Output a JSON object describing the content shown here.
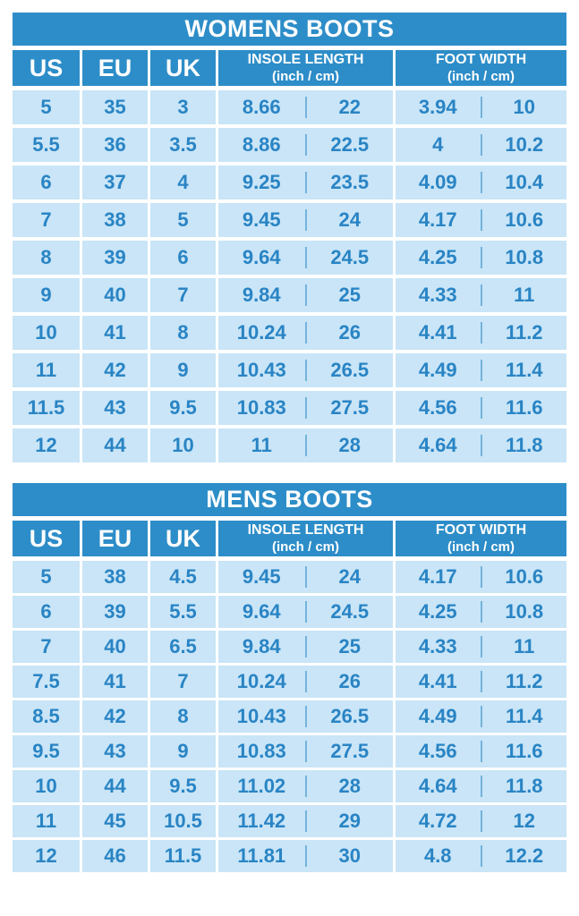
{
  "colors": {
    "header_blue": "#2D8DC8",
    "row_bg": "#C9E5F7",
    "value_text": "#2984C4",
    "divider": "#74B3DC",
    "title_text": "#FFFFFF",
    "page_bg": "#FFFFFF"
  },
  "chart_data": [
    {
      "type": "table",
      "title": "WOMENS BOOTS",
      "columns": [
        {
          "label": "US"
        },
        {
          "label": "EU"
        },
        {
          "label": "UK"
        },
        {
          "label": "INSOLE LENGTH",
          "sublabel": "(inch / cm)"
        },
        {
          "label": "FOOT WIDTH",
          "sublabel": "(inch / cm)"
        }
      ],
      "rows": [
        {
          "us": "5",
          "eu": "35",
          "uk": "3",
          "insole_inch": "8.66",
          "insole_cm": "22",
          "foot_width_inch": "3.94",
          "foot_width_cm": "10"
        },
        {
          "us": "5.5",
          "eu": "36",
          "uk": "3.5",
          "insole_inch": "8.86",
          "insole_cm": "22.5",
          "foot_width_inch": "4",
          "foot_width_cm": "10.2"
        },
        {
          "us": "6",
          "eu": "37",
          "uk": "4",
          "insole_inch": "9.25",
          "insole_cm": "23.5",
          "foot_width_inch": "4.09",
          "foot_width_cm": "10.4"
        },
        {
          "us": "7",
          "eu": "38",
          "uk": "5",
          "insole_inch": "9.45",
          "insole_cm": "24",
          "foot_width_inch": "4.17",
          "foot_width_cm": "10.6"
        },
        {
          "us": "8",
          "eu": "39",
          "uk": "6",
          "insole_inch": "9.64",
          "insole_cm": "24.5",
          "foot_width_inch": "4.25",
          "foot_width_cm": "10.8"
        },
        {
          "us": "9",
          "eu": "40",
          "uk": "7",
          "insole_inch": "9.84",
          "insole_cm": "25",
          "foot_width_inch": "4.33",
          "foot_width_cm": "11"
        },
        {
          "us": "10",
          "eu": "41",
          "uk": "8",
          "insole_inch": "10.24",
          "insole_cm": "26",
          "foot_width_inch": "4.41",
          "foot_width_cm": "11.2"
        },
        {
          "us": "11",
          "eu": "42",
          "uk": "9",
          "insole_inch": "10.43",
          "insole_cm": "26.5",
          "foot_width_inch": "4.49",
          "foot_width_cm": "11.4"
        },
        {
          "us": "11.5",
          "eu": "43",
          "uk": "9.5",
          "insole_inch": "10.83",
          "insole_cm": "27.5",
          "foot_width_inch": "4.56",
          "foot_width_cm": "11.6"
        },
        {
          "us": "12",
          "eu": "44",
          "uk": "10",
          "insole_inch": "11",
          "insole_cm": "28",
          "foot_width_inch": "4.64",
          "foot_width_cm": "11.8"
        }
      ]
    },
    {
      "type": "table",
      "title": "MENS BOOTS",
      "columns": [
        {
          "label": "US"
        },
        {
          "label": "EU"
        },
        {
          "label": "UK"
        },
        {
          "label": "INSOLE LENGTH",
          "sublabel": "(inch / cm)"
        },
        {
          "label": "FOOT WIDTH",
          "sublabel": "(inch / cm)"
        }
      ],
      "rows": [
        {
          "us": "5",
          "eu": "38",
          "uk": "4.5",
          "insole_inch": "9.45",
          "insole_cm": "24",
          "foot_width_inch": "4.17",
          "foot_width_cm": "10.6"
        },
        {
          "us": "6",
          "eu": "39",
          "uk": "5.5",
          "insole_inch": "9.64",
          "insole_cm": "24.5",
          "foot_width_inch": "4.25",
          "foot_width_cm": "10.8"
        },
        {
          "us": "7",
          "eu": "40",
          "uk": "6.5",
          "insole_inch": "9.84",
          "insole_cm": "25",
          "foot_width_inch": "4.33",
          "foot_width_cm": "11"
        },
        {
          "us": "7.5",
          "eu": "41",
          "uk": "7",
          "insole_inch": "10.24",
          "insole_cm": "26",
          "foot_width_inch": "4.41",
          "foot_width_cm": "11.2"
        },
        {
          "us": "8.5",
          "eu": "42",
          "uk": "8",
          "insole_inch": "10.43",
          "insole_cm": "26.5",
          "foot_width_inch": "4.49",
          "foot_width_cm": "11.4"
        },
        {
          "us": "9.5",
          "eu": "43",
          "uk": "9",
          "insole_inch": "10.83",
          "insole_cm": "27.5",
          "foot_width_inch": "4.56",
          "foot_width_cm": "11.6"
        },
        {
          "us": "10",
          "eu": "44",
          "uk": "9.5",
          "insole_inch": "11.02",
          "insole_cm": "28",
          "foot_width_inch": "4.64",
          "foot_width_cm": "11.8"
        },
        {
          "us": "11",
          "eu": "45",
          "uk": "10.5",
          "insole_inch": "11.42",
          "insole_cm": "29",
          "foot_width_inch": "4.72",
          "foot_width_cm": "12"
        },
        {
          "us": "12",
          "eu": "46",
          "uk": "11.5",
          "insole_inch": "11.81",
          "insole_cm": "30",
          "foot_width_inch": "4.8",
          "foot_width_cm": "12.2"
        }
      ]
    }
  ]
}
